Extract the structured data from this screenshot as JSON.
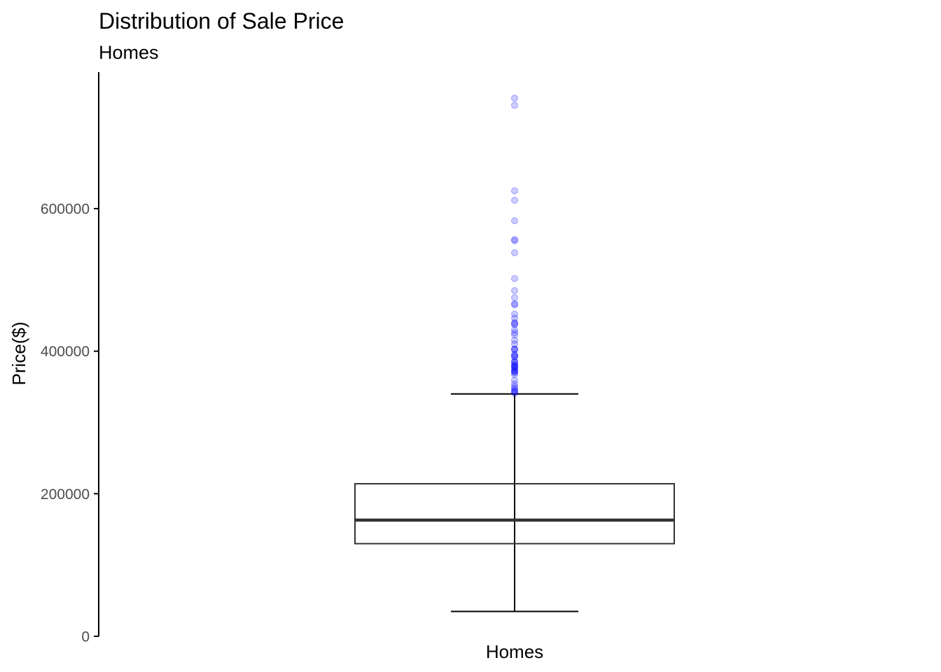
{
  "chart_data": {
    "type": "boxplot",
    "title": "Distribution of Sale Price",
    "subtitle": "Homes",
    "xlabel": "",
    "ylabel": "Price($)",
    "categories": [
      "Homes"
    ],
    "ylim": [
      0,
      790000
    ],
    "y_ticks": [
      0,
      200000,
      400000,
      600000
    ],
    "y_tick_labels": [
      "0",
      "200000",
      "400000",
      "600000"
    ],
    "grid": false,
    "legend": "none",
    "colors": {
      "box_line": "#333333",
      "median_line": "#333333",
      "whisker": "#000000",
      "outlier_fill": "#0000ff",
      "outlier_opacity": 0.2,
      "axis_line": "#000000"
    },
    "series": [
      {
        "category": "Homes",
        "whisker_low": 34900,
        "q1": 129975,
        "median": 163000,
        "q3": 214000,
        "whisker_high": 340000,
        "outliers": [
          755000,
          745000,
          625000,
          611657,
          582933,
          556581,
          555000,
          538000,
          501837,
          485000,
          475000,
          466500,
          465000,
          451950,
          446261,
          440000,
          438780,
          437154,
          430000,
          426000,
          423000,
          415298,
          410000,
          403000,
          402861,
          402000,
          395192,
          394617,
          392500,
          392000,
          386250,
          385000,
          383970,
          381000,
          380000,
          378500,
          377500,
          377426,
          375000,
          372500,
          372402,
          370878,
          369900,
          367294,
          359100,
          354000,
          350000,
          348000,
          345000,
          344133,
          342643,
          341000
        ]
      }
    ]
  }
}
